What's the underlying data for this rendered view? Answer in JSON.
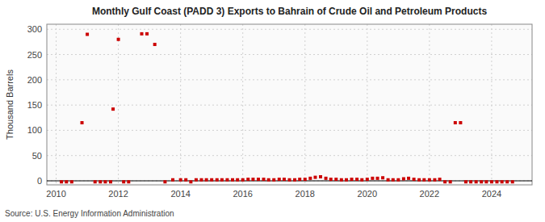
{
  "chart_data": {
    "type": "scatter",
    "title": "Monthly Gulf Coast (PADD 3) Exports to Bahrain of Crude Oil and Petroleum Products",
    "ylabel": "Thousand Barrels",
    "source": "Source: U.S. Energy Information Administration",
    "color": "#cc0000",
    "marker": "square",
    "grid": true,
    "xlim": [
      2009.7,
      2025.3
    ],
    "xticks": [
      2010,
      2012,
      2014,
      2016,
      2018,
      2020,
      2022,
      2024
    ],
    "ylim": [
      -8,
      310
    ],
    "yticks": [
      0,
      50,
      100,
      150,
      200,
      250,
      300
    ],
    "x": [
      2010.83,
      2011.0,
      2011.83,
      2012.0,
      2012.75,
      2012.92,
      2013.17,
      2010.17,
      2010.33,
      2010.5,
      2011.25,
      2011.42,
      2011.58,
      2011.75,
      2012.17,
      2012.33,
      2013.5,
      2013.75,
      2014.0,
      2014.17,
      2014.33,
      2014.5,
      2014.67,
      2014.83,
      2015.0,
      2015.17,
      2015.33,
      2015.5,
      2015.67,
      2015.83,
      2016.0,
      2016.17,
      2016.33,
      2016.5,
      2016.67,
      2016.83,
      2017.0,
      2017.17,
      2017.33,
      2017.5,
      2017.67,
      2017.83,
      2018.0,
      2018.17,
      2018.33,
      2018.5,
      2018.67,
      2018.83,
      2019.0,
      2019.17,
      2019.33,
      2019.5,
      2019.67,
      2019.83,
      2020.0,
      2020.17,
      2020.33,
      2020.5,
      2020.67,
      2020.83,
      2021.0,
      2021.17,
      2021.33,
      2021.5,
      2021.67,
      2021.83,
      2022.0,
      2022.17,
      2022.33,
      2022.5,
      2022.67,
      2022.83,
      2023.0,
      2023.17,
      2023.33,
      2023.5,
      2023.67,
      2023.83,
      2024.0,
      2024.17,
      2024.33,
      2024.5,
      2024.67
    ],
    "values": [
      115,
      290,
      142,
      280,
      291,
      291,
      270,
      -2,
      -2,
      -2,
      -2,
      -2,
      -2,
      -2,
      -2,
      -2,
      -2,
      2,
      2,
      2,
      -2,
      2,
      2,
      2,
      2,
      2,
      2,
      2,
      2,
      2,
      2,
      3,
      3,
      3,
      3,
      2,
      2,
      3,
      3,
      2,
      2,
      3,
      3,
      5,
      7,
      8,
      5,
      3,
      3,
      2,
      2,
      3,
      3,
      2,
      3,
      5,
      5,
      6,
      2,
      2,
      2,
      4,
      5,
      3,
      2,
      2,
      2,
      2,
      3,
      -2,
      -2,
      115,
      115,
      -2,
      -2,
      -2,
      -2,
      -2,
      -2,
      -2,
      -2,
      -2,
      -2
    ]
  }
}
